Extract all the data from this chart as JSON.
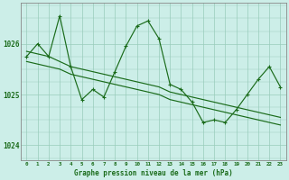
{
  "background_color": "#cceee8",
  "grid_color": "#99ccbb",
  "line_color": "#1a6b1a",
  "x_ticks": [
    0,
    1,
    2,
    3,
    4,
    5,
    6,
    7,
    8,
    9,
    10,
    11,
    12,
    13,
    14,
    15,
    16,
    17,
    18,
    19,
    20,
    21,
    22,
    23
  ],
  "ylim": [
    1023.7,
    1026.8
  ],
  "yticks": [
    1024,
    1025,
    1026
  ],
  "xlabel": "Graphe pression niveau de la mer (hPa)",
  "series_jagged": [
    1025.75,
    1026.0,
    1025.75,
    1026.55,
    1025.55,
    1024.9,
    1025.1,
    1024.95,
    1025.45,
    1025.95,
    1026.35,
    1026.45,
    1026.1,
    1025.2,
    1025.1,
    1024.85,
    1024.45,
    1024.5,
    1024.45,
    1024.7,
    1025.0,
    1025.3,
    1025.55,
    1025.15
  ],
  "series_line1": [
    1025.85,
    1025.8,
    1025.75,
    1025.65,
    1025.55,
    1025.5,
    1025.45,
    1025.4,
    1025.35,
    1025.3,
    1025.25,
    1025.2,
    1025.15,
    1025.05,
    1025.0,
    1024.95,
    1024.9,
    1024.85,
    1024.8,
    1024.75,
    1024.7,
    1024.65,
    1024.6,
    1024.55
  ],
  "series_line2": [
    1025.65,
    1025.6,
    1025.55,
    1025.5,
    1025.4,
    1025.35,
    1025.3,
    1025.25,
    1025.2,
    1025.15,
    1025.1,
    1025.05,
    1025.0,
    1024.9,
    1024.85,
    1024.8,
    1024.75,
    1024.7,
    1024.65,
    1024.6,
    1024.55,
    1024.5,
    1024.45,
    1024.4
  ]
}
